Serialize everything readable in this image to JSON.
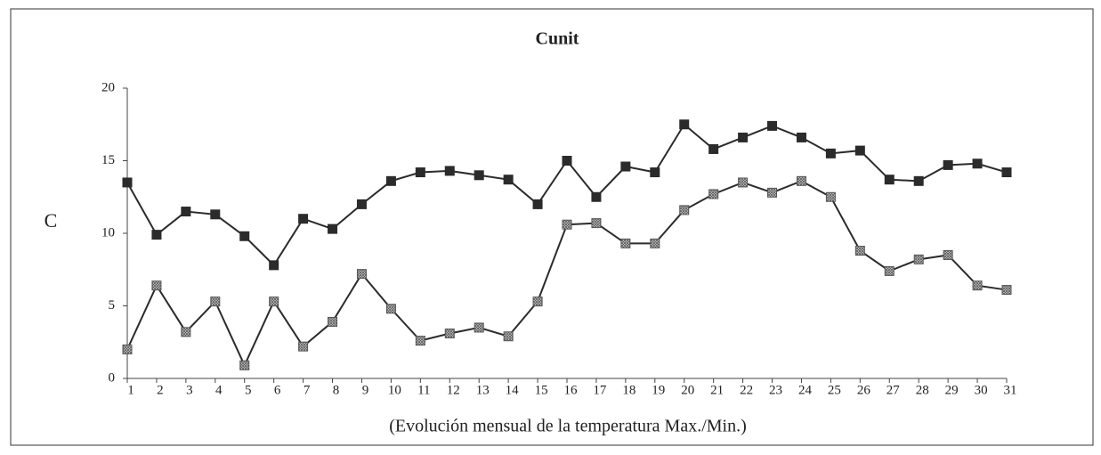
{
  "chart_data": {
    "type": "line",
    "title": "Cunit",
    "y_label": "C",
    "x_label": "(Evolución mensual de la temperatura Max./Min.)",
    "x": [
      1,
      2,
      3,
      4,
      5,
      6,
      7,
      8,
      9,
      10,
      11,
      12,
      13,
      14,
      15,
      16,
      17,
      18,
      19,
      20,
      21,
      22,
      23,
      24,
      25,
      26,
      27,
      28,
      29,
      30,
      31
    ],
    "series": [
      {
        "color": "#2b2b2b",
        "values": [
          13.5,
          9.9,
          11.5,
          11.3,
          9.8,
          7.8,
          11.0,
          10.3,
          12.0,
          13.6,
          14.2,
          14.3,
          14.0,
          13.7,
          12.0,
          15.0,
          12.5,
          14.6,
          14.2,
          17.5,
          15.8,
          16.6,
          17.4,
          16.6,
          15.5,
          15.7,
          13.7,
          13.6,
          14.7,
          14.8,
          14.2
        ]
      },
      {
        "color": "#9a9a9a",
        "values": [
          2.0,
          6.4,
          3.2,
          5.3,
          0.9,
          5.3,
          2.2,
          3.9,
          7.2,
          4.8,
          2.6,
          3.1,
          3.5,
          2.9,
          5.3,
          10.6,
          10.7,
          9.3,
          9.3,
          11.6,
          12.7,
          13.5,
          12.8,
          13.6,
          12.5,
          8.8,
          7.4,
          8.2,
          8.5,
          6.4,
          6.1
        ]
      }
    ],
    "xlim": [
      1,
      31
    ],
    "xticks": [
      1,
      2,
      3,
      4,
      5,
      6,
      7,
      8,
      9,
      10,
      11,
      12,
      13,
      14,
      15,
      16,
      17,
      18,
      19,
      20,
      21,
      22,
      23,
      24,
      25,
      26,
      27,
      28,
      29,
      30,
      31
    ],
    "ylim": [
      0,
      20
    ],
    "yticks": [
      0,
      5,
      10,
      15,
      20
    ],
    "grid": false
  }
}
